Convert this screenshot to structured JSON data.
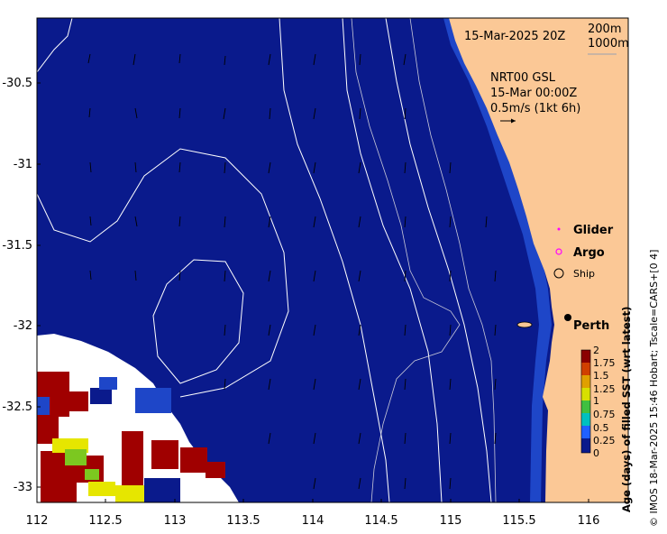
{
  "map": {
    "date_label": "15-Mar-2025 20Z",
    "contour_legend": [
      "200m",
      "1000m"
    ],
    "current_label": [
      "NRT00 GSL",
      "15-Mar 00:00Z",
      "0.5m/s (1kt 6h)"
    ],
    "legend": {
      "glider": "Glider",
      "argo": "Argo",
      "ship": "Ship"
    },
    "city": "Perth",
    "colorbar": {
      "title": "Age (days) of filled SST (wrt latest)",
      "ticks": [
        "2",
        "1.75",
        "1.5",
        "1.25",
        "1",
        "0.75",
        "0.5",
        "0.25",
        "0"
      ]
    },
    "credit": "© IMOS 18-Mar-2025 15:46 Hobart; Tscale=CARS+[0 4]",
    "x_ticks": [
      "112",
      "112.5",
      "113",
      "113.5",
      "114",
      "114.5",
      "115",
      "115.5",
      "116"
    ],
    "y_ticks": [
      "-30.5",
      "-31",
      "-31.5",
      "-32",
      "-32.5",
      "-33"
    ],
    "colors": {
      "ocean": "#0a1a8c",
      "land": "#fbc896",
      "coast_band": "#1e46c8",
      "contour": "#ffffff",
      "glider": "#ff00ff",
      "argo": "#ff00ff"
    }
  }
}
